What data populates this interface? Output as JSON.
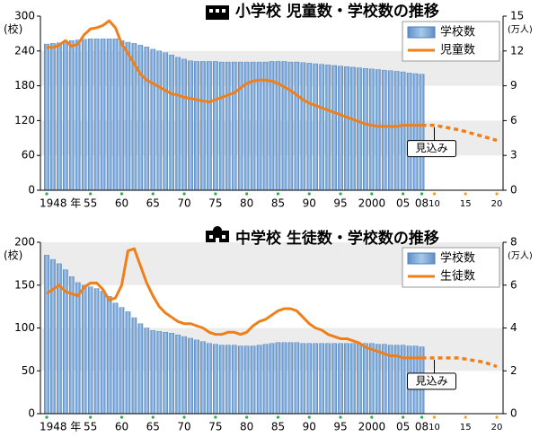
{
  "chart_data": [
    {
      "type": "bar_line",
      "title": "小学校 児童数・学校数の推移",
      "y_label": "(校)",
      "y2_label": "(万人)",
      "x": [
        1948,
        1949,
        1950,
        1951,
        1952,
        1953,
        1954,
        1955,
        1956,
        1957,
        1958,
        1959,
        1960,
        1961,
        1962,
        1963,
        1964,
        1965,
        1966,
        1967,
        1968,
        1969,
        1970,
        1971,
        1972,
        1973,
        1974,
        1975,
        1976,
        1977,
        1978,
        1979,
        1980,
        1981,
        1982,
        1983,
        1984,
        1985,
        1986,
        1987,
        1988,
        1989,
        1990,
        1991,
        1992,
        1993,
        1994,
        1995,
        1996,
        1997,
        1998,
        1999,
        2000,
        2001,
        2002,
        2003,
        2004,
        2005,
        2006,
        2007,
        2008
      ],
      "series": [
        {
          "name": "学校数",
          "color": "#7ba7d8",
          "values": [
            252,
            253,
            254,
            257,
            258,
            259,
            260,
            261,
            261,
            261,
            261,
            261,
            258,
            255,
            253,
            250,
            247,
            243,
            240,
            237,
            233,
            229,
            226,
            223,
            222,
            222,
            222,
            222,
            221,
            221,
            221,
            221,
            221,
            221,
            221,
            221,
            222,
            222,
            222,
            221,
            221,
            220,
            219,
            218,
            217,
            216,
            215,
            214,
            213,
            212,
            211,
            210,
            209,
            208,
            207,
            206,
            205,
            204,
            202,
            201,
            200
          ]
        },
        {
          "name": "児童数",
          "color": "#f07f1a",
          "axis": "y2",
          "values": [
            12.3,
            12.3,
            12.5,
            12.9,
            12.4,
            12.6,
            13.4,
            13.9,
            14.0,
            14.2,
            14.6,
            14.0,
            12.6,
            11.8,
            10.9,
            10.0,
            9.5,
            9.2,
            8.9,
            8.6,
            8.3,
            8.2,
            8.0,
            7.9,
            7.8,
            7.7,
            7.6,
            7.8,
            8.0,
            8.2,
            8.4,
            8.8,
            9.2,
            9.4,
            9.5,
            9.5,
            9.4,
            9.2,
            8.9,
            8.6,
            8.2,
            7.8,
            7.5,
            7.3,
            7.1,
            6.9,
            6.7,
            6.5,
            6.3,
            6.1,
            5.9,
            5.7,
            5.6,
            5.5,
            5.5,
            5.5,
            5.5,
            5.6,
            5.6,
            5.6,
            5.6
          ]
        }
      ],
      "projection": {
        "label": "見込み",
        "x": [
          2008,
          2010,
          2012,
          2014,
          2016,
          2018,
          2020
        ],
        "values": [
          5.6,
          5.6,
          5.4,
          5.2,
          4.9,
          4.6,
          4.3
        ]
      },
      "xlim": [
        1947,
        2021
      ],
      "xticks": [
        {
          "value": 1948,
          "label": "1948 年"
        },
        {
          "value": 1955,
          "label": "55"
        },
        {
          "value": 1960,
          "label": "60"
        },
        {
          "value": 1965,
          "label": "65"
        },
        {
          "value": 1970,
          "label": "70"
        },
        {
          "value": 1975,
          "label": "75"
        },
        {
          "value": 1980,
          "label": "80"
        },
        {
          "value": 1985,
          "label": "85"
        },
        {
          "value": 1990,
          "label": "90"
        },
        {
          "value": 1995,
          "label": "95"
        },
        2000,
        {
          "value": 2005,
          "label": "05"
        },
        {
          "value": 2008,
          "label": "08"
        },
        {
          "value": 2010,
          "label": "10"
        },
        {
          "value": 2015,
          "label": "15"
        },
        {
          "value": 2020,
          "label": "20"
        }
      ],
      "ylim": [
        0,
        300
      ],
      "yticks": [
        0,
        60,
        120,
        180,
        240,
        300
      ],
      "y2lim": [
        0,
        15
      ],
      "y2ticks": [
        0,
        3,
        6,
        9,
        12,
        15
      ],
      "grid": "bands",
      "legend": "upper right"
    },
    {
      "type": "bar_line",
      "title": "中学校 生徒数・学校数の推移",
      "y_label": "(校)",
      "y2_label": "(万人)",
      "x": [
        1948,
        1949,
        1950,
        1951,
        1952,
        1953,
        1954,
        1955,
        1956,
        1957,
        1958,
        1959,
        1960,
        1961,
        1962,
        1963,
        1964,
        1965,
        1966,
        1967,
        1968,
        1969,
        1970,
        1971,
        1972,
        1973,
        1974,
        1975,
        1976,
        1977,
        1978,
        1979,
        1980,
        1981,
        1982,
        1983,
        1984,
        1985,
        1986,
        1987,
        1988,
        1989,
        1990,
        1991,
        1992,
        1993,
        1994,
        1995,
        1996,
        1997,
        1998,
        1999,
        2000,
        2001,
        2002,
        2003,
        2004,
        2005,
        2006,
        2007,
        2008
      ],
      "series": [
        {
          "name": "学校数",
          "color": "#7ba7d8",
          "values": [
            185,
            180,
            175,
            168,
            160,
            153,
            150,
            148,
            146,
            143,
            137,
            129,
            124,
            119,
            112,
            105,
            100,
            97,
            96,
            95,
            94,
            92,
            90,
            88,
            86,
            84,
            82,
            81,
            80,
            80,
            80,
            79,
            79,
            79,
            80,
            81,
            82,
            83,
            83,
            83,
            83,
            82,
            82,
            82,
            82,
            82,
            82,
            82,
            82,
            82,
            82,
            82,
            82,
            81,
            81,
            80,
            80,
            80,
            79,
            79,
            78
          ]
        },
        {
          "name": "生徒数",
          "color": "#f07f1a",
          "axis": "y2",
          "values": [
            5.6,
            5.8,
            6.0,
            5.7,
            5.6,
            5.5,
            5.9,
            6.1,
            6.1,
            5.8,
            5.3,
            5.4,
            6.0,
            7.6,
            7.7,
            6.9,
            6.1,
            5.5,
            5.0,
            4.7,
            4.5,
            4.3,
            4.2,
            4.2,
            4.1,
            4.0,
            3.8,
            3.7,
            3.7,
            3.8,
            3.8,
            3.7,
            3.8,
            4.1,
            4.3,
            4.4,
            4.6,
            4.8,
            4.9,
            4.9,
            4.8,
            4.5,
            4.2,
            4.0,
            3.9,
            3.7,
            3.6,
            3.5,
            3.5,
            3.4,
            3.3,
            3.1,
            3.0,
            2.9,
            2.8,
            2.7,
            2.7,
            2.6,
            2.6,
            2.6,
            2.6
          ]
        }
      ],
      "projection": {
        "label": "見込み",
        "x": [
          2008,
          2010,
          2012,
          2014,
          2016,
          2018,
          2020
        ],
        "values": [
          2.6,
          2.6,
          2.6,
          2.6,
          2.5,
          2.4,
          2.2
        ]
      },
      "xlim": [
        1947,
        2021
      ],
      "xticks": [
        {
          "value": 1948,
          "label": "1948 年"
        },
        {
          "value": 1955,
          "label": "55"
        },
        {
          "value": 1960,
          "label": "60"
        },
        {
          "value": 1965,
          "label": "65"
        },
        {
          "value": 1970,
          "label": "70"
        },
        {
          "value": 1975,
          "label": "75"
        },
        {
          "value": 1980,
          "label": "80"
        },
        {
          "value": 1985,
          "label": "85"
        },
        {
          "value": 1990,
          "label": "90"
        },
        {
          "value": 1995,
          "label": "95"
        },
        2000,
        {
          "value": 2005,
          "label": "05"
        },
        {
          "value": 2008,
          "label": "08"
        },
        {
          "value": 2010,
          "label": "10"
        },
        {
          "value": 2015,
          "label": "15"
        },
        {
          "value": 2020,
          "label": "20"
        }
      ],
      "ylim": [
        0,
        200
      ],
      "yticks": [
        0,
        50,
        100,
        150,
        200
      ],
      "y2lim": [
        0,
        8
      ],
      "y2ticks": [
        0,
        2,
        4,
        6,
        8
      ],
      "grid": "bands",
      "legend": "upper right"
    }
  ]
}
